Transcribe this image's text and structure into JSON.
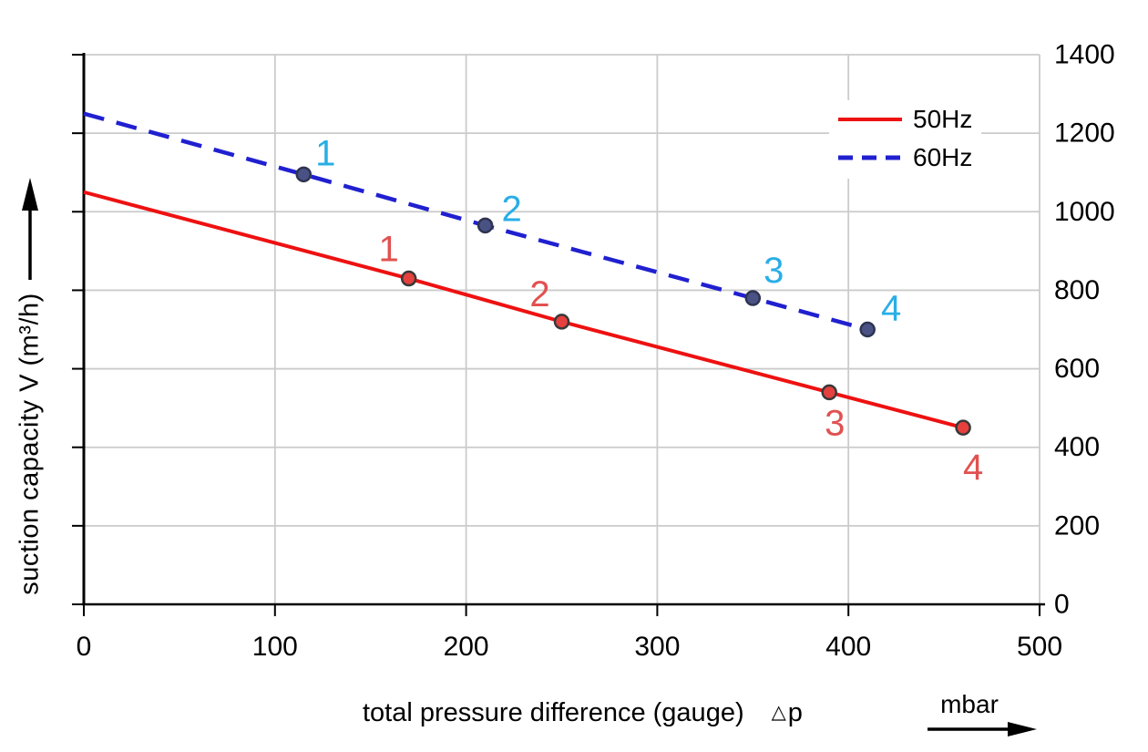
{
  "chart_data": {
    "type": "line",
    "title": "",
    "xlabel": "total pressure difference (gauge)",
    "xlabel_symbol": "△",
    "xlabel_variable": "p",
    "x_unit": "mbar",
    "ylabel": "suction capacity V (m³/h)",
    "xlim": [
      0,
      500
    ],
    "ylim": [
      0,
      1400
    ],
    "x_ticks": [
      0,
      100,
      200,
      300,
      400,
      500
    ],
    "y_ticks": [
      0,
      200,
      400,
      600,
      800,
      1000,
      1200,
      1400
    ],
    "y_tick_side": "right",
    "grid": true,
    "grid_color": "#cbcbcb",
    "axis_color": "#000000",
    "legend_position": "top-right",
    "series": [
      {
        "name": "50Hz",
        "style": "solid",
        "color": "#ee1111",
        "marker": "circle",
        "marker_fill": "#e5403d",
        "marker_stroke": "#383838",
        "label_color": "#e15150",
        "points": [
          {
            "x": 0,
            "y": 1050
          },
          {
            "x": 170,
            "y": 830,
            "label": "1",
            "label_dx": -22,
            "label_dy": -32
          },
          {
            "x": 250,
            "y": 720,
            "label": "2",
            "label_dx": -24,
            "label_dy": -30
          },
          {
            "x": 390,
            "y": 540,
            "label": "3",
            "label_dx": 6,
            "label_dy": 34
          },
          {
            "x": 460,
            "y": 450,
            "label": "4",
            "label_dx": 11,
            "label_dy": 44
          }
        ]
      },
      {
        "name": "60Hz",
        "style": "dashed",
        "color": "#2020d0",
        "marker": "circle",
        "marker_fill": "#4a5285",
        "marker_stroke": "#2e3450",
        "label_color": "#29aee6",
        "points": [
          {
            "x": 0,
            "y": 1250
          },
          {
            "x": 115,
            "y": 1095,
            "label": "1",
            "label_dx": 24,
            "label_dy": -23
          },
          {
            "x": 210,
            "y": 965,
            "label": "2",
            "label_dx": 29,
            "label_dy": -18
          },
          {
            "x": 350,
            "y": 780,
            "label": "3",
            "label_dx": 23,
            "label_dy": -30
          },
          {
            "x": 410,
            "y": 700,
            "label": "4",
            "label_dx": 26,
            "label_dy": -23
          }
        ]
      }
    ]
  },
  "legend": {
    "items": [
      {
        "label": "50Hz"
      },
      {
        "label": "60Hz"
      }
    ]
  },
  "xaxis": {
    "label": "total pressure difference (gauge)",
    "symbol": "△",
    "variable": "p",
    "unit": "mbar"
  },
  "yaxis": {
    "label": "suction capacity V (m³/h)"
  }
}
